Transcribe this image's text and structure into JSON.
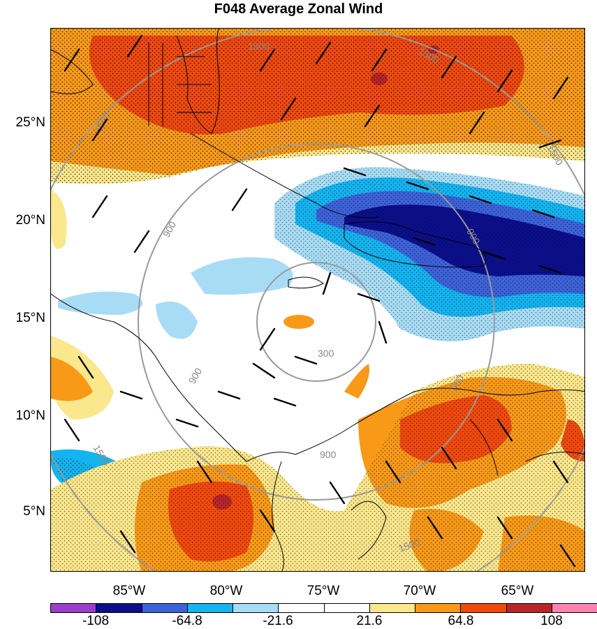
{
  "title": "F048 Average Zonal Wind",
  "latitude_labels": [
    "25°N",
    "20°N",
    "15°N",
    "10°N",
    "5°N"
  ],
  "longitude_labels": [
    "85°W",
    "80°W",
    "75°W",
    "70°W",
    "65°W"
  ],
  "colorbar": {
    "colors": [
      "#9b3fcc",
      "#0b0f8c",
      "#3d62d8",
      "#14b4f0",
      "#a8dcf5",
      "#ffffff",
      "#ffffff",
      "#fbe78c",
      "#f89a18",
      "#f04a0e",
      "#b8262a",
      "#ff82b0"
    ],
    "labels": [
      "-108",
      "-64.8",
      "-21.6",
      "21.6",
      "64.8",
      "108"
    ]
  },
  "range_ring_labels": [
    "300",
    "900",
    "900",
    "900",
    "900",
    "900",
    "1500",
    "1500",
    "1500",
    "1500",
    "1500",
    "1500"
  ],
  "colors": {
    "ring": "#9a9a9a",
    "coast": "#000000",
    "barb": "#000000"
  },
  "map_legend_type": "filled contour with wind barbs and stippling"
}
